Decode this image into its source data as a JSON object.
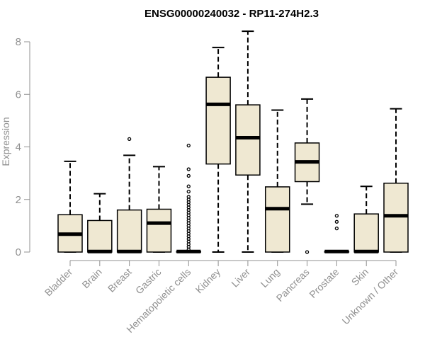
{
  "chart_data": {
    "type": "box",
    "title": "ENSG00000240032 - RP11-274H2.3",
    "xlabel": "",
    "ylabel": "Expression",
    "ylim": [
      0,
      8.5
    ],
    "yticks": [
      0,
      2,
      4,
      6,
      8
    ],
    "categories": [
      "Bladder",
      "Brain",
      "Breast",
      "Gastric",
      "Hematopoietic cells",
      "Kidney",
      "Liver",
      "Lung",
      "Pancreas",
      "Prostate",
      "Skin",
      "Unknown / Other"
    ],
    "boxes": [
      {
        "category": "Bladder",
        "min": 0,
        "q1": 0,
        "median": 0.68,
        "q3": 1.42,
        "max": 3.45,
        "outliers": []
      },
      {
        "category": "Brain",
        "min": 0,
        "q1": 0,
        "median": 0.02,
        "q3": 1.2,
        "max": 2.22,
        "outliers": []
      },
      {
        "category": "Breast",
        "min": 0,
        "q1": 0,
        "median": 0.02,
        "q3": 1.6,
        "max": 3.68,
        "outliers": [
          4.3
        ]
      },
      {
        "category": "Gastric",
        "min": 0,
        "q1": 0,
        "median": 1.1,
        "q3": 1.63,
        "max": 3.25,
        "outliers": []
      },
      {
        "category": "Hematopoietic cells",
        "min": 0,
        "q1": 0,
        "median": 0.02,
        "q3": 0.02,
        "max": 0.02,
        "outliers": [
          0.1,
          0.2,
          0.3,
          0.4,
          0.5,
          0.6,
          0.7,
          0.8,
          0.9,
          1.0,
          1.1,
          1.2,
          1.3,
          1.4,
          1.5,
          1.6,
          1.7,
          1.8,
          1.9,
          2.0,
          2.1,
          2.3,
          2.5,
          2.9,
          3.15,
          4.05
        ]
      },
      {
        "category": "Kidney",
        "min": 0,
        "q1": 3.35,
        "median": 5.62,
        "q3": 6.65,
        "max": 7.78,
        "outliers": []
      },
      {
        "category": "Liver",
        "min": 0,
        "q1": 2.93,
        "median": 4.35,
        "q3": 5.6,
        "max": 8.4,
        "outliers": []
      },
      {
        "category": "Lung",
        "min": 0,
        "q1": 0,
        "median": 1.65,
        "q3": 2.48,
        "max": 5.4,
        "outliers": []
      },
      {
        "category": "Pancreas",
        "min": 1.82,
        "q1": 2.68,
        "median": 3.43,
        "q3": 4.15,
        "max": 5.82,
        "outliers": [
          0
        ]
      },
      {
        "category": "Prostate",
        "min": 0,
        "q1": 0,
        "median": 0.02,
        "q3": 0.02,
        "max": 0.02,
        "outliers": [
          0.9,
          1.15,
          1.38
        ]
      },
      {
        "category": "Skin",
        "min": 0,
        "q1": 0,
        "median": 0.02,
        "q3": 1.45,
        "max": 2.5,
        "outliers": []
      },
      {
        "category": "Unknown / Other",
        "min": 0,
        "q1": 0,
        "median": 1.38,
        "q3": 2.62,
        "max": 5.45,
        "outliers": []
      }
    ],
    "legend": "none",
    "grid": false,
    "colors": {
      "box_fill": "#efe8d2",
      "box_stroke": "#000000",
      "axis": "#909090"
    }
  }
}
